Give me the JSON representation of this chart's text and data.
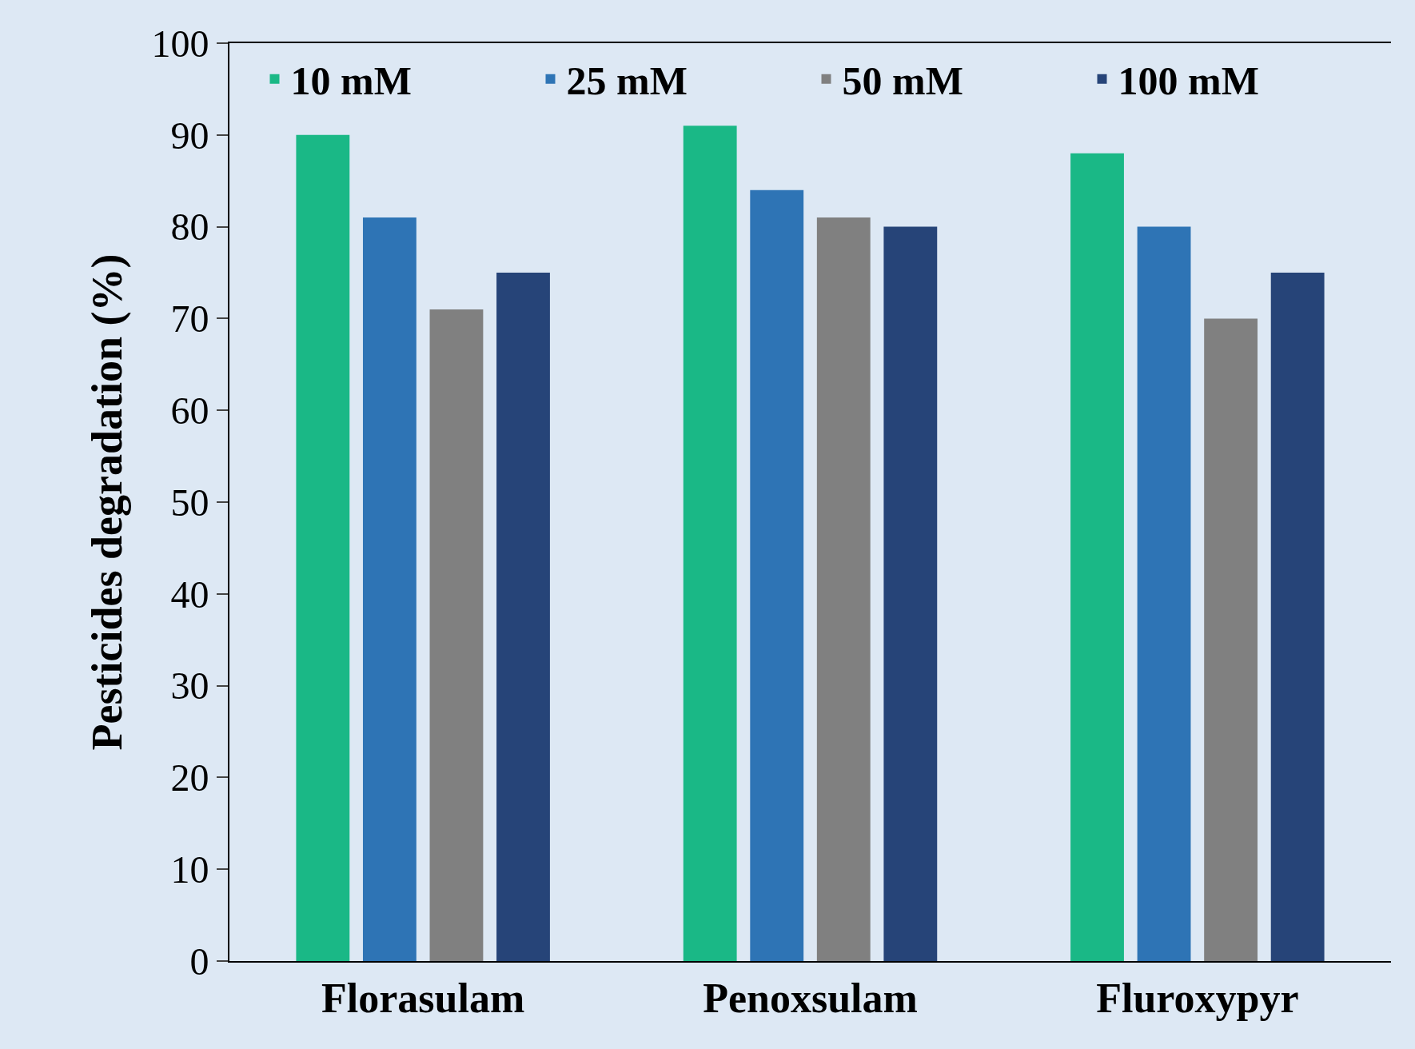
{
  "chart_data": {
    "type": "bar",
    "ylabel": "Pesticides degradation (%)",
    "categories": [
      "Florasulam",
      "Penoxsulam",
      "Fluroxypyr"
    ],
    "series": [
      {
        "name": "10 mM",
        "color": "#1ab886",
        "values": [
          90,
          91,
          88
        ]
      },
      {
        "name": "25 mM",
        "color": "#2e74b5",
        "values": [
          81,
          84,
          80
        ]
      },
      {
        "name": "50 mM",
        "color": "#808080",
        "values": [
          71,
          81,
          70
        ]
      },
      {
        "name": "100 mM",
        "color": "#264478",
        "values": [
          75,
          80,
          75
        ]
      }
    ],
    "ylim": [
      0,
      100
    ],
    "yticks": [
      0,
      10,
      20,
      30,
      40,
      50,
      60,
      70,
      80,
      90,
      100
    ],
    "grid": false,
    "legend": "top"
  }
}
